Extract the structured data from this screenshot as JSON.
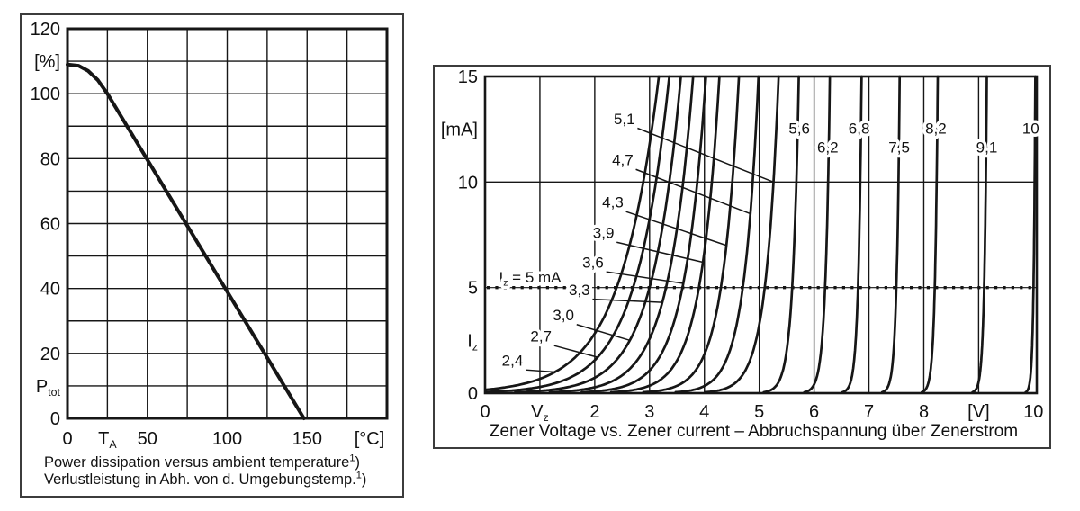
{
  "colors": {
    "background": "#ffffff",
    "ink": "#161616",
    "text": "#111111",
    "halo": "#ffffff",
    "panel_border": "#3c3c3c"
  },
  "chart_data": [
    {
      "type": "line",
      "name": "power-derating",
      "title": "Power dissipation versus ambient temperature",
      "caption": {
        "line1": "Power dissipation versus ambient temperature",
        "footnote1": "1",
        "paren1": ")",
        "line2": "Verlustleistung in Abh. von d. Umgebungstemp.",
        "footnote2": "1",
        "paren2": ")"
      },
      "xlabel": "[°C]",
      "ylabel": "[%]",
      "x_axis": {
        "range": [
          0,
          200
        ],
        "grid_step": 25,
        "ticks": [
          {
            "v": 0,
            "label": "0"
          },
          {
            "v": 25,
            "label": "T_{A}"
          },
          {
            "v": 50,
            "label": "50"
          },
          {
            "v": 100,
            "label": "100"
          },
          {
            "v": 150,
            "label": "150"
          },
          {
            "v": 189,
            "label": "[°C]"
          }
        ]
      },
      "y_axis": {
        "range": [
          0,
          120
        ],
        "grid_step": 10,
        "ticks": [
          {
            "v": 120,
            "label": "120"
          },
          {
            "v": 110,
            "label": "[%]"
          },
          {
            "v": 100,
            "label": "100"
          },
          {
            "v": 80,
            "label": "80"
          },
          {
            "v": 60,
            "label": "60"
          },
          {
            "v": 40,
            "label": "40"
          },
          {
            "v": 20,
            "label": "20"
          },
          {
            "v": 10,
            "label": "P_{tot}"
          },
          {
            "v": 0,
            "label": "0"
          }
        ]
      },
      "series": [
        {
          "name": "ptot-derating-percent",
          "points": [
            [
              0,
              109
            ],
            [
              7,
              108.6
            ],
            [
              13,
              107
            ],
            [
              19,
              104.2
            ],
            [
              25,
              100
            ],
            [
              148,
              0
            ]
          ]
        }
      ]
    },
    {
      "type": "line",
      "name": "zener-characteristics",
      "title": "Zener Voltage vs. Zener current – Abbruchspannung über Zenerstrom",
      "caption": "Zener Voltage vs. Zener current – Abbruchspannung über Zenerstrom",
      "xlabel": "[V]",
      "ylabel": "[mA]",
      "x_axis": {
        "range": [
          0,
          10.06
        ],
        "grid_step": 1,
        "ticks": [
          {
            "v": 0,
            "label": "0"
          },
          {
            "v": 1,
            "label": "V_{z}"
          },
          {
            "v": 2,
            "label": "2"
          },
          {
            "v": 3,
            "label": "3"
          },
          {
            "v": 4,
            "label": "4"
          },
          {
            "v": 5,
            "label": "5"
          },
          {
            "v": 6,
            "label": "6"
          },
          {
            "v": 7,
            "label": "7"
          },
          {
            "v": 8,
            "label": "8"
          },
          {
            "v": 9,
            "label": "[V]"
          },
          {
            "v": 10,
            "label": "10"
          }
        ]
      },
      "y_axis": {
        "range": [
          0,
          15
        ],
        "gridlines": [
          10
        ],
        "ticks": [
          {
            "v": 15,
            "label": "15"
          },
          {
            "v": 12.5,
            "label": "[mA]"
          },
          {
            "v": 10,
            "label": "10"
          },
          {
            "v": 5,
            "label": "5"
          },
          {
            "v": 2.5,
            "label": "I_{z}"
          },
          {
            "v": 0,
            "label": "0"
          }
        ]
      },
      "reference_line": {
        "i_ma": 5,
        "style": "dotted",
        "label": "I_{z} = 5 mA",
        "label_pos": [
          0.82,
          5.5
        ]
      },
      "curves": [
        {
          "vz": 2.4,
          "r": 0.7,
          "label": "2,4",
          "label_pos": [
            0.5,
            1.55
          ],
          "leader_end_mA": 1.0
        },
        {
          "vz": 2.7,
          "r": 0.6,
          "label": "2,7",
          "label_pos": [
            1.02,
            2.7
          ],
          "leader_end_mA": 1.7
        },
        {
          "vz": 3.0,
          "r": 0.52,
          "label": "3,0",
          "label_pos": [
            1.43,
            3.7
          ],
          "leader_end_mA": 2.5
        },
        {
          "vz": 3.3,
          "r": 0.45,
          "label": "3,3",
          "label_pos": [
            1.72,
            4.9
          ],
          "leader_end_mA": 4.3
        },
        {
          "vz": 3.6,
          "r": 0.39,
          "label": "3,6",
          "label_pos": [
            1.97,
            6.2
          ],
          "leader_end_mA": 5.2
        },
        {
          "vz": 3.9,
          "r": 0.34,
          "label": "3,9",
          "label_pos": [
            2.16,
            7.6
          ],
          "leader_end_mA": 6.2
        },
        {
          "vz": 4.3,
          "r": 0.3,
          "label": "4,3",
          "label_pos": [
            2.33,
            9.05
          ],
          "leader_end_mA": 7.0
        },
        {
          "vz": 4.7,
          "r": 0.26,
          "label": "4,7",
          "label_pos": [
            2.51,
            11.05
          ],
          "leader_end_mA": 8.5
        },
        {
          "vz": 5.1,
          "r": 0.23,
          "label": "5,1",
          "label_pos": [
            2.54,
            13.0
          ],
          "leader_end_mA": 10.0
        },
        {
          "vz": 5.6,
          "r": 0.11,
          "label": "5,6",
          "label_pos": [
            5.73,
            12.55
          ]
        },
        {
          "vz": 6.2,
          "r": 0.08,
          "label": "6,2",
          "label_pos": [
            6.25,
            11.65
          ]
        },
        {
          "vz": 6.8,
          "r": 0.06,
          "label": "6,8",
          "label_pos": [
            6.82,
            12.55
          ]
        },
        {
          "vz": 7.5,
          "r": 0.055,
          "label": "7,5",
          "label_pos": [
            7.55,
            11.65
          ]
        },
        {
          "vz": 8.2,
          "r": 0.05,
          "label": "8,2",
          "label_pos": [
            8.22,
            12.55
          ]
        },
        {
          "vz": 9.1,
          "r": 0.045,
          "label": "9,1",
          "label_pos": [
            9.15,
            11.65
          ]
        },
        {
          "vz": 10,
          "r": 0.03,
          "label": "10",
          "label_pos": [
            9.95,
            12.55
          ]
        }
      ]
    }
  ]
}
